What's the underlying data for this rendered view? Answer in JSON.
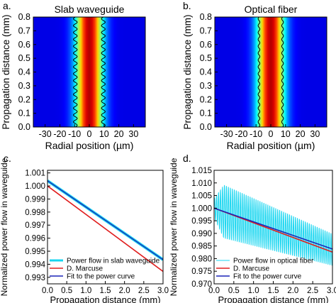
{
  "chart_data": [
    {
      "panel_label": "a.",
      "type": "heatmap",
      "title": "Slab waveguide",
      "xlabel": "Radial position (µm)",
      "ylabel": "Propagation distance (mm)",
      "xlim": [
        -38,
        38
      ],
      "ylim": [
        0,
        0.8
      ],
      "xticks": [
        "-30",
        "-20",
        "-10",
        "0",
        "10",
        "20",
        "30"
      ],
      "yticks": [
        "0.0",
        "0.1",
        "0.2",
        "0.3",
        "0.4",
        "0.5",
        "0.6",
        "0.7",
        "0.8"
      ],
      "colormap": "jet",
      "field_width_um": 9,
      "boundary_x_um": [
        -9.5,
        9.5
      ],
      "boundary_ripple_um": 1.3,
      "boundary_ripple_period_mm": 0.05
    },
    {
      "panel_label": "b.",
      "type": "heatmap",
      "title": "Optical fiber",
      "xlabel": "Radial position (µm)",
      "ylabel": "Propagation distance (mm)",
      "xlim": [
        -38,
        38
      ],
      "ylim": [
        0,
        0.8
      ],
      "xticks": [
        "-30",
        "-20",
        "-10",
        "0",
        "10",
        "20",
        "30"
      ],
      "yticks": [
        "0.0",
        "0.1",
        "0.2",
        "0.3",
        "0.4",
        "0.5",
        "0.6",
        "0.7",
        "0.8"
      ],
      "colormap": "jet",
      "field_width_um": 9,
      "boundary_x_um": [
        -8,
        8
      ],
      "boundary_ripple_um": 0.6,
      "boundary_ripple_period_mm": 0.05
    },
    {
      "panel_label": "c.",
      "type": "line",
      "xlabel": "Propagation distance (mm)",
      "ylabel": "Normalized power flow in waveguide",
      "xlim": [
        0,
        3.0
      ],
      "ylim": [
        0.9925,
        1.0012
      ],
      "xticks": [
        "0.0",
        "0.5",
        "1.0",
        "1.5",
        "2.0",
        "2.5",
        "3.0"
      ],
      "yticks": [
        "0.993",
        "0.994",
        "0.995",
        "0.996",
        "0.997",
        "0.998",
        "0.999",
        "1.000",
        "1.001"
      ],
      "legend_position": "bottom-left",
      "series": [
        {
          "name": "Power flow in slab waveguide",
          "color": "#19d6f0",
          "x": [
            0,
            3.0
          ],
          "y": [
            1.0004,
            0.99435
          ],
          "width": 4
        },
        {
          "name": "D. Marcuse",
          "color": "#e01e1e",
          "x": [
            0,
            3.0
          ],
          "y": [
            1.0,
            0.99345
          ],
          "width": 1.6
        },
        {
          "name": "Fit to the power curve",
          "color": "#1a23b8",
          "x": [
            0,
            3.0
          ],
          "y": [
            1.0004,
            0.99435
          ],
          "width": 1.4
        }
      ]
    },
    {
      "panel_label": "d.",
      "type": "line",
      "xlabel": "Propagation distance (mm)",
      "ylabel": "Normalized power flow in waveguide",
      "xlim": [
        0,
        3.0
      ],
      "ylim": [
        0.97,
        1.015
      ],
      "xticks": [
        "0.0",
        "0.5",
        "1.0",
        "1.5",
        "2.0",
        "2.5",
        "3.0"
      ],
      "yticks": [
        "0.970",
        "0.975",
        "0.980",
        "0.985",
        "0.990",
        "0.995",
        "1.000",
        "1.005",
        "1.010",
        "1.015"
      ],
      "legend_position": "bottom-left",
      "series": [
        {
          "name": "Power flow in optical fiber",
          "color": "#19d6f0",
          "type": "oscillation",
          "x_start": 0,
          "x_end": 3.0,
          "center_start": 1.0,
          "center_end": 0.9835,
          "amp_peak": 0.0105,
          "peak_x": 0.25,
          "amp_end": 0.0062,
          "period_mm": 0.05,
          "width": 1
        },
        {
          "name": "D. Marcuse",
          "color": "#e01e1e",
          "x": [
            0,
            3.0
          ],
          "y": [
            1.0,
            0.9826
          ],
          "width": 1.6
        },
        {
          "name": "Fit to the power curve",
          "color": "#1a23b8",
          "x": [
            0,
            3.0
          ],
          "y": [
            1.0,
            0.9838
          ],
          "width": 1.6
        }
      ]
    }
  ]
}
